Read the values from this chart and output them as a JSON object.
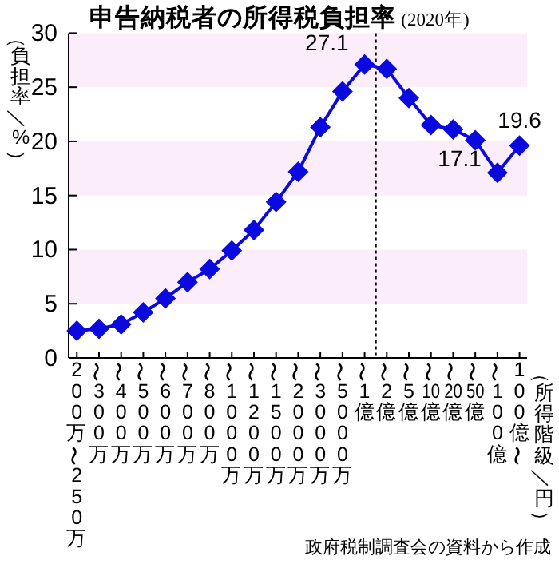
{
  "chart_data": {
    "type": "line",
    "title": "申告納税者の所得税負担率",
    "subtitle": "(2020年)",
    "ylabel": "（負担率／%）",
    "xlabel": "（所得階級／円）",
    "annotations": [
      "政府税制調査会の資料から作成"
    ],
    "categories": [
      "200万〜250万",
      "〜300万",
      "〜400万",
      "〜500万",
      "〜600万",
      "〜700万",
      "〜800万",
      "〜1000万",
      "〜1200万",
      "〜1500万",
      "〜2000万",
      "〜3000万",
      "〜5000万",
      "〜1億",
      "〜2億",
      "〜5億",
      "〜10億",
      "〜20億",
      "〜50億",
      "〜100億",
      "100億〜"
    ],
    "series": [
      {
        "color": "#0a0adf",
        "values": [
          2.5,
          2.7,
          3.1,
          4.2,
          5.5,
          7.0,
          8.2,
          9.9,
          11.8,
          14.4,
          17.2,
          21.3,
          24.6,
          27.1,
          26.7,
          24.0,
          21.5,
          21.1,
          20.1,
          17.1,
          19.6
        ],
        "value_labels": [
          null,
          null,
          null,
          null,
          null,
          null,
          null,
          null,
          null,
          null,
          null,
          null,
          null,
          "27.1",
          null,
          null,
          null,
          null,
          null,
          "17.1",
          "19.6"
        ]
      }
    ],
    "ylim": [
      0,
      30
    ],
    "yticks": [
      0,
      5,
      10,
      15,
      20,
      25,
      30
    ],
    "bands": [
      {
        "axis": "y",
        "from": 5,
        "to": 10,
        "color": "#fbeefa"
      },
      {
        "axis": "y",
        "from": 15,
        "to": 20,
        "color": "#fbeefa"
      },
      {
        "axis": "y",
        "from": 25,
        "to": 30,
        "color": "#fbeefa"
      }
    ],
    "marker": "diamond",
    "line_style": "solid",
    "grid": false
  }
}
